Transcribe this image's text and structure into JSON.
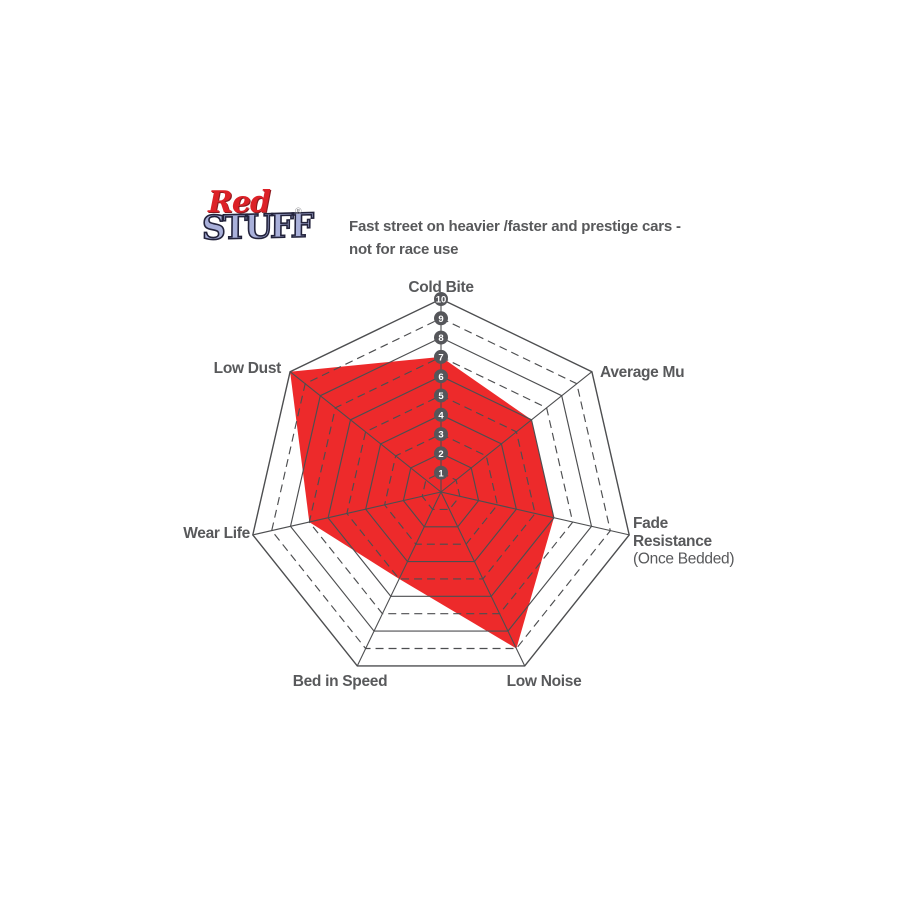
{
  "page": {
    "background": "#ffffff"
  },
  "logo": {
    "word1": "Red",
    "word2": "STUFF",
    "registered_mark": "®"
  },
  "header": {
    "tagline_line1": "Fast street on heavier /faster and prestige cars -",
    "tagline_line2": "not for race use"
  },
  "colors": {
    "accent_red": "#ED2A2B",
    "grid_line": "#4D4E50",
    "label_gray": "#58595B",
    "badge_fill": "#55565A",
    "badge_text": "#FFFFFF",
    "logo_red": "#DC2127",
    "logo_periwinkle": "#A9B0DA",
    "logo_outline": "#23233C"
  },
  "chart_data": {
    "type": "radar",
    "categories": [
      "Cold Bite",
      "Average Mu",
      "Fade Resistance",
      "Low Noise",
      "Bed in Speed",
      "Wear Life",
      "Low Dust"
    ],
    "category_sublabels": {
      "Fade Resistance": "(Once Bedded)"
    },
    "values": [
      7,
      6,
      6,
      9,
      5,
      7,
      10
    ],
    "scale": {
      "min": 0,
      "max": 10,
      "ticks": [
        1,
        2,
        3,
        4,
        5,
        6,
        7,
        8,
        9,
        10
      ]
    },
    "grid": {
      "shape": "heptagon",
      "even_rings": "solid",
      "odd_rings": "dashed",
      "spokes": true
    },
    "legend": "none",
    "fill_color": "#ED2A2B"
  }
}
